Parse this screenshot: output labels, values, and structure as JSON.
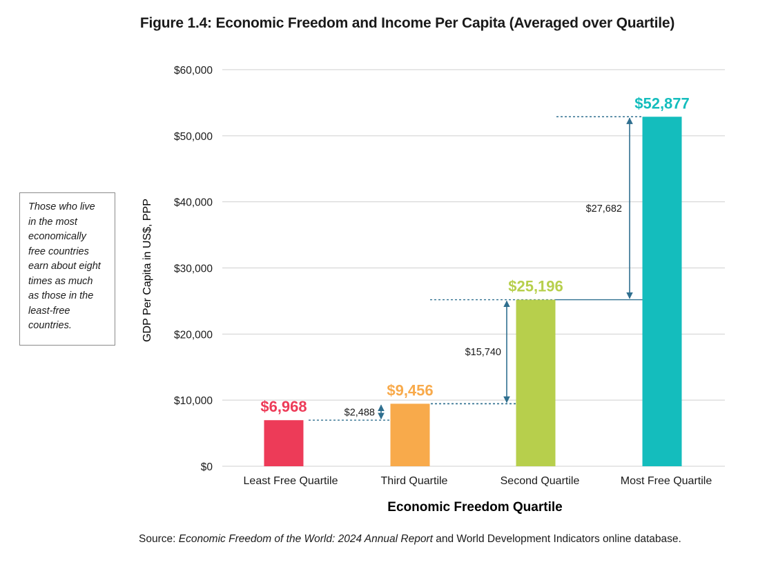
{
  "figure_title": "Figure 1.4: Economic Freedom and Income Per Capita (Averaged over Quartile)",
  "note_text": "Those who live in the most economically free countries earn about eight times as much as those in the least-free countries.",
  "source": {
    "prefix": "Source: ",
    "title": "Economic Freedom of the World: 2024 Annual Report",
    "suffix": " and World Development Indicators online database."
  },
  "colors": {
    "least": "#ed3b58",
    "third": "#f8aa4b",
    "second": "#b7cf4c",
    "most": "#14bdbd",
    "grid": "#cfcfcf",
    "arrow": "#2f6f8f"
  },
  "chart_data": {
    "type": "bar",
    "title": "Figure 1.4: Economic Freedom and Income Per Capita (Averaged over Quartile)",
    "xlabel": "Economic Freedom Quartile",
    "ylabel": "GDP Per Capita in US$, PPP",
    "ylim": [
      0,
      60000
    ],
    "yticks": [
      0,
      10000,
      20000,
      30000,
      40000,
      50000,
      60000
    ],
    "ytick_labels": [
      "$0",
      "$10,000",
      "$20,000",
      "$30,000",
      "$40,000",
      "$50,000",
      "$60,000"
    ],
    "grid": true,
    "categories": [
      "Least Free Quartile",
      "Third Quartile",
      "Second Quartile",
      "Most Free Quartile"
    ],
    "values": [
      6968,
      9456,
      25196,
      52877
    ],
    "value_labels": [
      "$6,968",
      "$9,456",
      "$25,196",
      "$52,877"
    ],
    "differences": [
      {
        "from": 0,
        "to": 1,
        "label": "$2,488"
      },
      {
        "from": 1,
        "to": 2,
        "label": "$15,740"
      },
      {
        "from": 2,
        "to": 3,
        "label": "$27,682"
      }
    ]
  }
}
